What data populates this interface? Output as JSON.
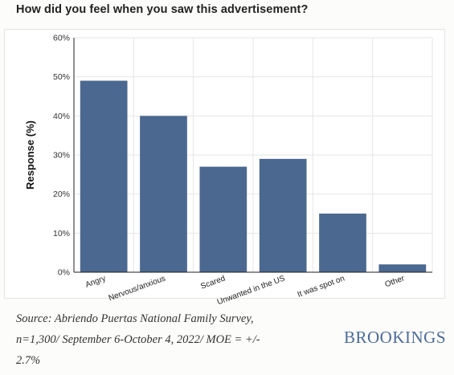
{
  "title": "How did you feel when you saw this advertisement?",
  "source_lines": [
    "Source: Abriendo Puertas National Family Survey,",
    "n=1,300/ September 6-October 4, 2022/ MOE = +/-",
    "2.7%"
  ],
  "brand": "BROOKINGS",
  "colors": {
    "bar": "#4b6890",
    "grid": "#e6e6e6",
    "axis": "#222222"
  },
  "chart_data": {
    "type": "bar",
    "categories": [
      "Angry",
      "Nervous/anxious",
      "Scared",
      "Unwanted in the US",
      "It was spot on",
      "Other"
    ],
    "values": [
      49,
      40,
      27,
      29,
      15,
      2
    ],
    "ylabel": "Response (%)",
    "xlabel": "",
    "ylim": [
      0,
      60
    ],
    "yticks": [
      "0%",
      "10%",
      "20%",
      "30%",
      "40%",
      "50%",
      "60%"
    ],
    "grid": true
  }
}
